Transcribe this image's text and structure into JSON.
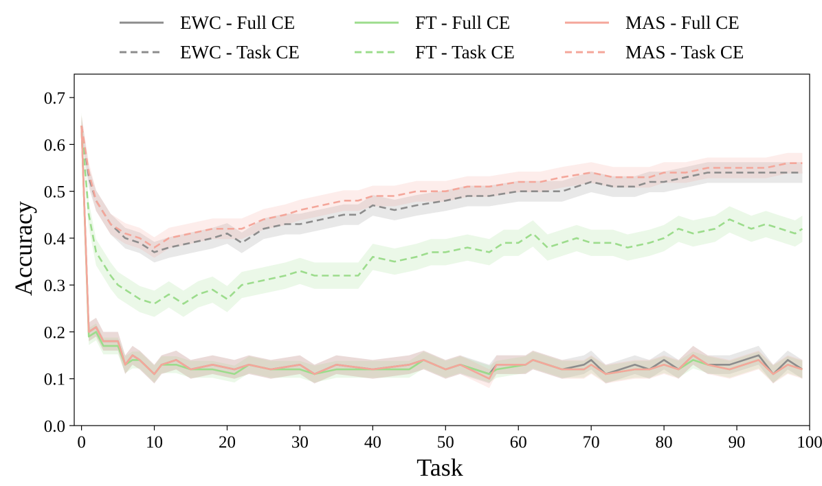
{
  "chart_data": {
    "type": "line",
    "title": "",
    "xlabel": "Task",
    "ylabel": "Accuracy",
    "xlim": [
      -1,
      100
    ],
    "ylim": [
      0.0,
      0.75
    ],
    "xticks": [
      0,
      10,
      20,
      30,
      40,
      50,
      60,
      70,
      80,
      90,
      100
    ],
    "xtick_labels": [
      "0",
      "10",
      "20",
      "30",
      "40",
      "50",
      "60",
      "70",
      "80",
      "90",
      "100"
    ],
    "yticks": [
      0.0,
      0.1,
      0.2,
      0.3,
      0.4,
      0.5,
      0.6,
      0.7
    ],
    "ytick_labels": [
      "0.0",
      "0.1",
      "0.2",
      "0.3",
      "0.4",
      "0.5",
      "0.6",
      "0.7"
    ],
    "grid": false,
    "legend_position": "top",
    "series": [
      {
        "name": "EWC - Full CE",
        "color": "#8c8c8c",
        "dash": "solid",
        "band_halfwidth": 0.02,
        "x": [
          0,
          1,
          2,
          3,
          5,
          6,
          7,
          8,
          10,
          11,
          13,
          15,
          18,
          21,
          23,
          26,
          30,
          32,
          35,
          40,
          45,
          47,
          50,
          52,
          56,
          57,
          61,
          62,
          66,
          69,
          70,
          72,
          76,
          78,
          80,
          82,
          84,
          86,
          89,
          93,
          95,
          97,
          99
        ],
        "y": [
          0.64,
          0.2,
          0.21,
          0.18,
          0.18,
          0.13,
          0.15,
          0.14,
          0.11,
          0.13,
          0.14,
          0.12,
          0.13,
          0.12,
          0.13,
          0.12,
          0.13,
          0.11,
          0.13,
          0.12,
          0.13,
          0.14,
          0.12,
          0.13,
          0.11,
          0.13,
          0.13,
          0.14,
          0.12,
          0.13,
          0.14,
          0.11,
          0.13,
          0.12,
          0.14,
          0.12,
          0.15,
          0.13,
          0.13,
          0.15,
          0.11,
          0.14,
          0.12
        ]
      },
      {
        "name": "EWC - Task CE",
        "color": "#8c8c8c",
        "dash": "dashed",
        "band_halfwidth": 0.022,
        "x": [
          0,
          1,
          2,
          4,
          6,
          8,
          10,
          12,
          15,
          18,
          20,
          22,
          25,
          28,
          30,
          33,
          36,
          38,
          40,
          43,
          46,
          50,
          53,
          56,
          60,
          63,
          66,
          70,
          73,
          76,
          78,
          80,
          83,
          86,
          89,
          92,
          94,
          97,
          99
        ],
        "y": [
          0.64,
          0.53,
          0.48,
          0.43,
          0.4,
          0.39,
          0.37,
          0.38,
          0.39,
          0.4,
          0.41,
          0.39,
          0.42,
          0.43,
          0.43,
          0.44,
          0.45,
          0.45,
          0.47,
          0.46,
          0.47,
          0.48,
          0.49,
          0.49,
          0.5,
          0.5,
          0.5,
          0.52,
          0.51,
          0.51,
          0.52,
          0.52,
          0.53,
          0.54,
          0.54,
          0.54,
          0.54,
          0.54,
          0.54
        ]
      },
      {
        "name": "FT - Full CE",
        "color": "#9cdc8c",
        "dash": "solid",
        "band_halfwidth": 0.018,
        "x": [
          0,
          1,
          2,
          3,
          5,
          6,
          7,
          8,
          10,
          11,
          13,
          15,
          18,
          21,
          23,
          26,
          30,
          32,
          35,
          40,
          45,
          47,
          50,
          52,
          56,
          57,
          61,
          62,
          66,
          69,
          70,
          72,
          76,
          78,
          80,
          82,
          84,
          86,
          89,
          93,
          95,
          97,
          99
        ],
        "y": [
          0.64,
          0.19,
          0.2,
          0.17,
          0.17,
          0.13,
          0.14,
          0.14,
          0.11,
          0.13,
          0.13,
          0.12,
          0.12,
          0.11,
          0.13,
          0.12,
          0.12,
          0.11,
          0.12,
          0.12,
          0.12,
          0.14,
          0.12,
          0.13,
          0.11,
          0.12,
          0.13,
          0.14,
          0.12,
          0.12,
          0.13,
          0.11,
          0.12,
          0.12,
          0.13,
          0.12,
          0.14,
          0.13,
          0.12,
          0.14,
          0.11,
          0.13,
          0.12
        ]
      },
      {
        "name": "FT - Task CE",
        "color": "#9cdc8c",
        "dash": "dashed",
        "band_halfwidth": 0.028,
        "x": [
          0,
          1,
          2,
          4,
          5,
          7,
          8,
          10,
          12,
          14,
          16,
          18,
          20,
          22,
          25,
          28,
          30,
          32,
          35,
          38,
          40,
          43,
          46,
          48,
          50,
          53,
          56,
          58,
          60,
          62,
          64,
          66,
          68,
          70,
          73,
          75,
          78,
          80,
          82,
          84,
          87,
          89,
          92,
          94,
          96,
          98,
          99
        ],
        "y": [
          0.64,
          0.45,
          0.37,
          0.32,
          0.3,
          0.28,
          0.27,
          0.26,
          0.28,
          0.26,
          0.28,
          0.29,
          0.27,
          0.3,
          0.31,
          0.32,
          0.33,
          0.32,
          0.32,
          0.32,
          0.36,
          0.35,
          0.36,
          0.37,
          0.37,
          0.38,
          0.37,
          0.39,
          0.39,
          0.41,
          0.38,
          0.39,
          0.4,
          0.39,
          0.39,
          0.38,
          0.39,
          0.4,
          0.42,
          0.41,
          0.42,
          0.44,
          0.42,
          0.43,
          0.42,
          0.41,
          0.42
        ]
      },
      {
        "name": "MAS - Full CE",
        "color": "#f4a69a",
        "dash": "solid",
        "band_halfwidth": 0.02,
        "x": [
          0,
          1,
          2,
          3,
          5,
          6,
          7,
          8,
          10,
          11,
          13,
          15,
          18,
          21,
          23,
          26,
          30,
          32,
          35,
          40,
          45,
          47,
          50,
          52,
          56,
          57,
          61,
          62,
          66,
          69,
          70,
          72,
          76,
          78,
          80,
          82,
          84,
          86,
          89,
          93,
          95,
          97,
          99
        ],
        "y": [
          0.64,
          0.2,
          0.21,
          0.18,
          0.18,
          0.13,
          0.15,
          0.14,
          0.11,
          0.13,
          0.14,
          0.12,
          0.13,
          0.12,
          0.13,
          0.12,
          0.13,
          0.11,
          0.13,
          0.12,
          0.13,
          0.14,
          0.12,
          0.13,
          0.1,
          0.13,
          0.13,
          0.14,
          0.12,
          0.12,
          0.13,
          0.11,
          0.12,
          0.12,
          0.13,
          0.12,
          0.15,
          0.13,
          0.12,
          0.14,
          0.11,
          0.13,
          0.12
        ]
      },
      {
        "name": "MAS - Task CE",
        "color": "#f4a69a",
        "dash": "dashed",
        "band_halfwidth": 0.022,
        "x": [
          0,
          1,
          2,
          4,
          6,
          8,
          10,
          12,
          15,
          18,
          20,
          22,
          25,
          28,
          30,
          33,
          36,
          38,
          40,
          43,
          46,
          50,
          53,
          56,
          60,
          63,
          66,
          70,
          73,
          76,
          78,
          80,
          83,
          86,
          89,
          92,
          94,
          97,
          99
        ],
        "y": [
          0.64,
          0.54,
          0.48,
          0.43,
          0.41,
          0.4,
          0.38,
          0.4,
          0.41,
          0.42,
          0.42,
          0.42,
          0.44,
          0.45,
          0.46,
          0.47,
          0.48,
          0.48,
          0.49,
          0.49,
          0.5,
          0.5,
          0.51,
          0.51,
          0.52,
          0.52,
          0.53,
          0.54,
          0.53,
          0.53,
          0.53,
          0.54,
          0.54,
          0.55,
          0.55,
          0.55,
          0.55,
          0.56,
          0.56
        ]
      }
    ]
  }
}
